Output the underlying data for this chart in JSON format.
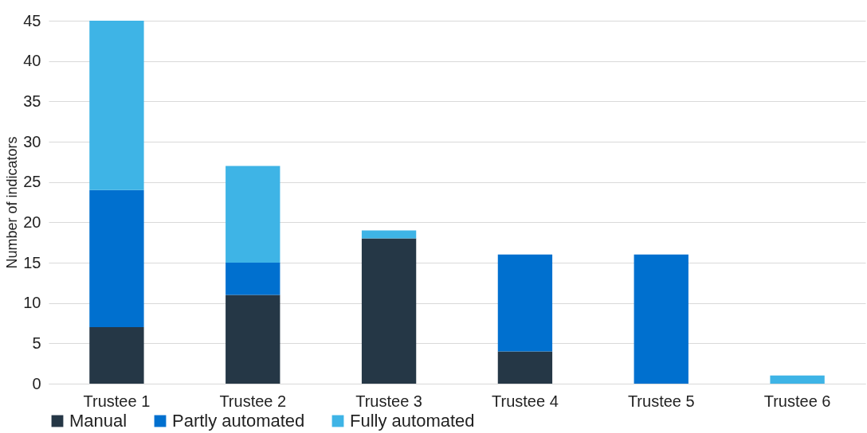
{
  "chart_data": {
    "type": "bar",
    "stacked": true,
    "ylabel": "Number of indicators",
    "categories": [
      "Trustee 1",
      "Trustee 2",
      "Trustee 3",
      "Trustee 4",
      "Trustee 5",
      "Trustee 6"
    ],
    "series": [
      {
        "name": "Manual",
        "color": "#253746",
        "values": [
          7,
          11,
          18,
          4,
          0,
          0
        ]
      },
      {
        "name": "Partly automated",
        "color": "#0070cf",
        "values": [
          17,
          4,
          0,
          12,
          16,
          0
        ]
      },
      {
        "name": "Fully automated",
        "color": "#3eb4e6",
        "values": [
          21,
          12,
          1,
          0,
          0,
          1
        ]
      }
    ],
    "ylim": [
      0,
      45
    ],
    "yticks": [
      0,
      5,
      10,
      15,
      20,
      25,
      30,
      35,
      40,
      45
    ],
    "grid": "y",
    "legend": "bottom"
  }
}
